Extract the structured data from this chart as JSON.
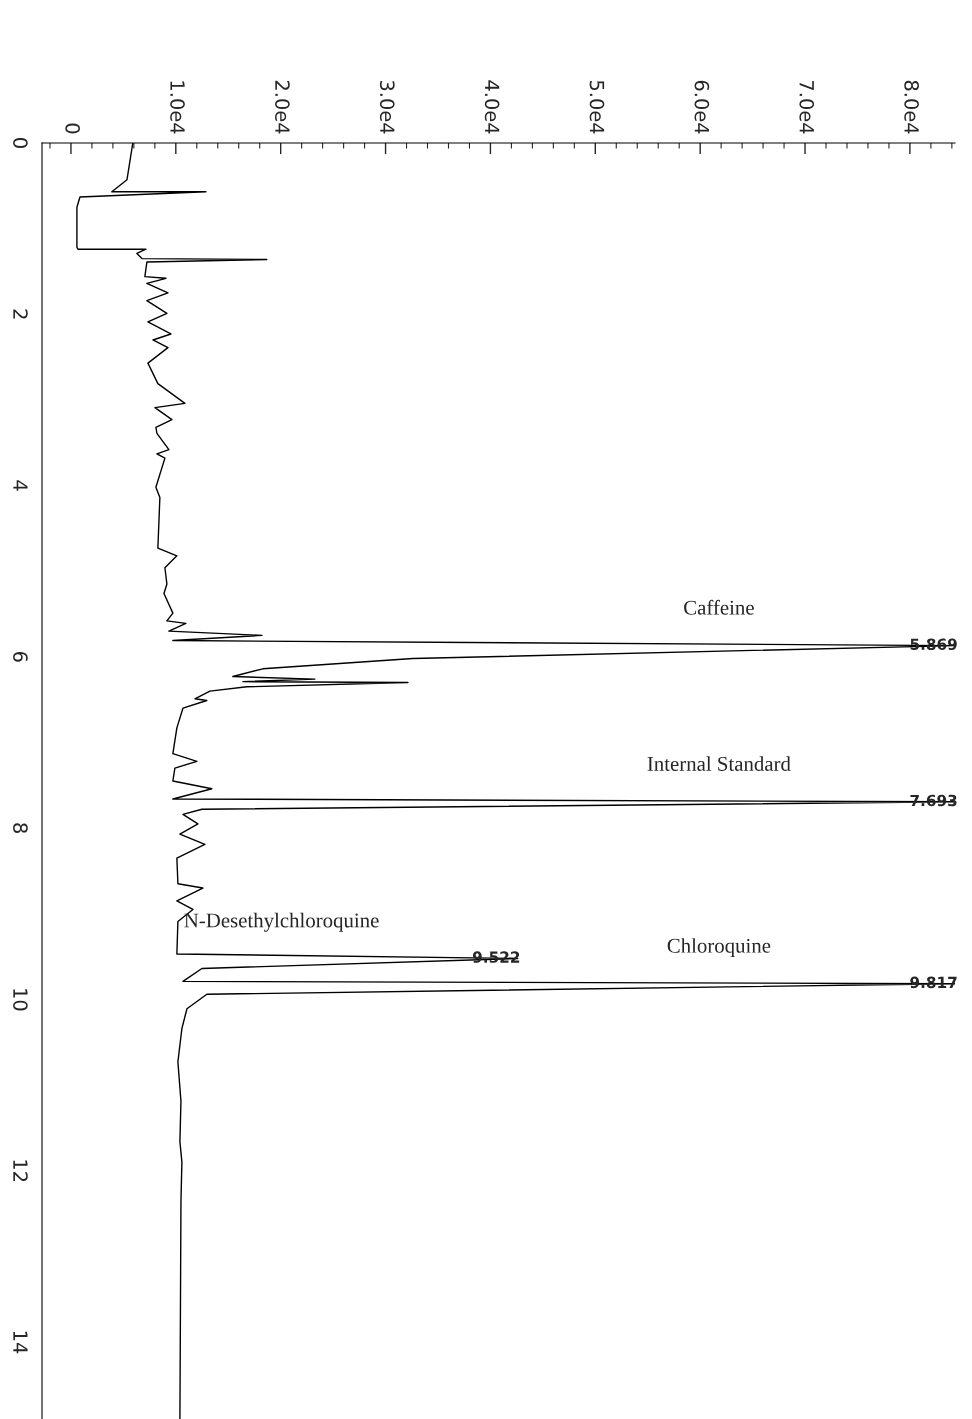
{
  "chart_data": {
    "type": "line",
    "series": [
      {
        "color": "#000000",
        "x": [
          5900,
          5340,
          3900,
          12870,
          860,
          570,
          570,
          670,
          7150,
          6290,
          6770,
          18680,
          7240,
          7050,
          9060,
          7240,
          9250,
          7240,
          9150,
          7340,
          9530,
          7820,
          9250,
          7340,
          8290,
          10870,
          8010,
          9630,
          8100,
          8200,
          9340,
          8200,
          8960,
          8100,
          8480,
          8290,
          10100,
          8960,
          9150,
          8870,
          9720,
          9150,
          10960,
          9340,
          18210,
          9720,
          84300,
          32600,
          18300,
          15440,
          23260,
          16400,
          32130,
          16780,
          13250,
          11820,
          12960,
          10680,
          10100,
          9720,
          12010,
          9910,
          9720,
          13440,
          9720,
          84300,
          12490,
          10680,
          12110,
          10390,
          12770,
          10100,
          10200,
          12580,
          10100,
          11630,
          10200,
          10100,
          42600,
          12490,
          10680,
          84300,
          12960,
          11060,
          10580,
          10200,
          10490,
          10390,
          10580,
          10490,
          10390
        ],
        "values": [
          0,
          0.43,
          0.57,
          0.57,
          0.63,
          0.75,
          1.22,
          1.24,
          1.24,
          1.29,
          1.35,
          1.36,
          1.39,
          1.56,
          1.58,
          1.64,
          1.75,
          1.84,
          1.99,
          2.09,
          2.23,
          2.3,
          2.39,
          2.57,
          2.81,
          3.04,
          3.09,
          3.23,
          3.32,
          3.39,
          3.58,
          3.63,
          3.68,
          4.02,
          4.14,
          4.73,
          4.82,
          4.96,
          5.15,
          5.26,
          5.49,
          5.58,
          5.61,
          5.7,
          5.75,
          5.81,
          5.869,
          6.02,
          6.14,
          6.23,
          6.26,
          6.29,
          6.3,
          6.35,
          6.4,
          6.49,
          6.51,
          6.6,
          6.83,
          7.13,
          7.22,
          7.3,
          7.45,
          7.54,
          7.66,
          7.693,
          7.78,
          7.84,
          7.95,
          8.07,
          8.19,
          8.35,
          8.65,
          8.7,
          8.85,
          8.95,
          9.09,
          9.47,
          9.522,
          9.64,
          9.79,
          9.817,
          9.94,
          10.11,
          10.34,
          10.73,
          11.19,
          11.66,
          11.9,
          12.36,
          14.9
        ]
      }
    ],
    "xlim": [
      -2760,
      84300
    ],
    "xticks": [
      0,
      {
        "value": 10000,
        "label": "1.0e4"
      },
      {
        "value": 20000,
        "label": "2.0e4"
      },
      {
        "value": 30000,
        "label": "3.0e4"
      },
      {
        "value": 40000,
        "label": "4.0e4"
      },
      {
        "value": 50000,
        "label": "5.0e4"
      },
      {
        "value": 60000,
        "label": "6.0e4"
      },
      {
        "value": 70000,
        "label": "7.0e4"
      },
      {
        "value": 80000,
        "label": "8.0e4"
      }
    ],
    "ylim": [
      14.9,
      0
    ],
    "yticks": [
      0,
      2,
      4,
      6,
      8,
      10,
      12,
      14
    ],
    "annotations": [
      "Caffeine",
      "5.869",
      "Internal Standard",
      "7.693",
      "N-Desethylchloroquine",
      "9.522",
      "Chloroquine",
      "9.817"
    ]
  }
}
